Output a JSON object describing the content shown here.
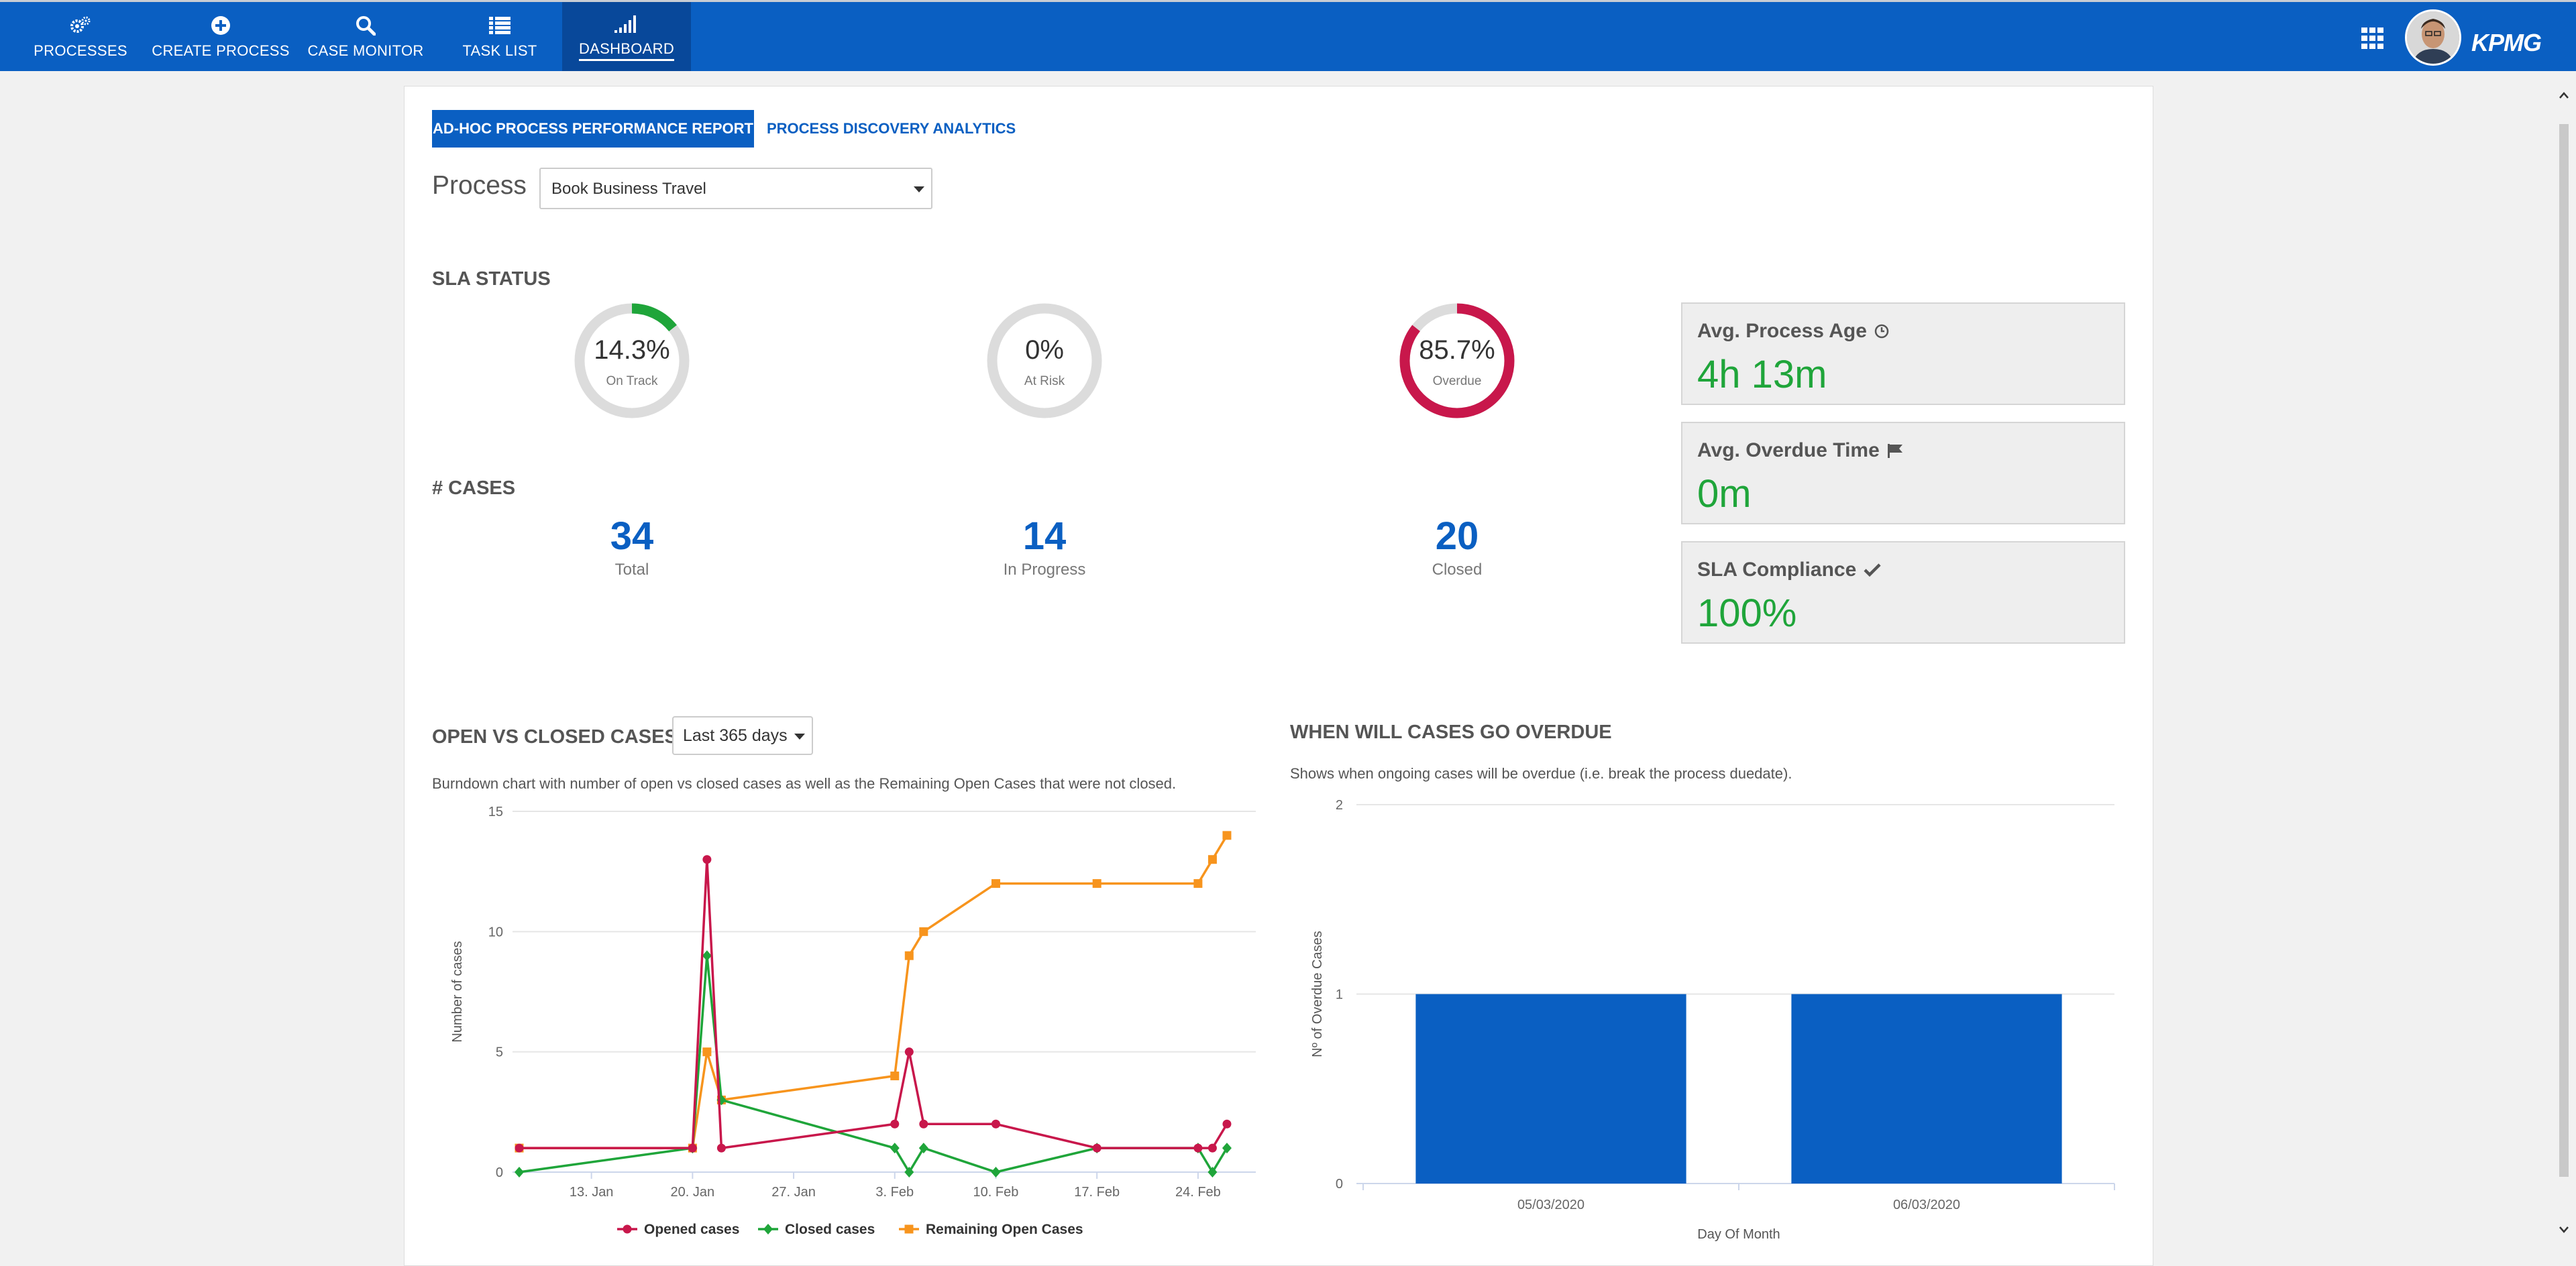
{
  "nav": {
    "items": [
      {
        "label": "PROCESSES",
        "icon": "gears-icon"
      },
      {
        "label": "CREATE PROCESS",
        "icon": "plus-circle-icon"
      },
      {
        "label": "CASE MONITOR",
        "icon": "search-icon"
      },
      {
        "label": "TASK LIST",
        "icon": "list-icon"
      },
      {
        "label": "DASHBOARD",
        "icon": "signal-bars-icon"
      }
    ],
    "active": "DASHBOARD",
    "logo": "KPMG"
  },
  "tabs": {
    "report": "AD-HOC PROCESS PERFORMANCE REPORT",
    "discovery": "PROCESS DISCOVERY ANALYTICS"
  },
  "process": {
    "label": "Process",
    "selected": "Book Business Travel"
  },
  "sla": {
    "title": "SLA STATUS",
    "gauges": [
      {
        "value": "14.3%",
        "label": "On Track",
        "fraction": 0.143,
        "color": "#1fa53a"
      },
      {
        "value": "0%",
        "label": "At Risk",
        "fraction": 0,
        "color": "#f0a31c"
      },
      {
        "value": "85.7%",
        "label": "Overdue",
        "fraction": 0.857,
        "color": "#c8174b"
      }
    ]
  },
  "cases": {
    "title": "# CASES",
    "total": {
      "value": "34",
      "label": "Total"
    },
    "in_progress": {
      "value": "14",
      "label": "In Progress"
    },
    "closed": {
      "value": "20",
      "label": "Closed"
    }
  },
  "kpis": {
    "process_age": {
      "title": "Avg. Process Age",
      "value": "4h 13m"
    },
    "overdue_time": {
      "title": "Avg. Overdue Time",
      "value": "0m"
    },
    "sla_compliance": {
      "title": "SLA Compliance",
      "value": "100%"
    }
  },
  "open_closed": {
    "title": "OPEN VS CLOSED CASES",
    "range": "Last 365 days",
    "description": "Burndown chart with number of open vs closed cases as well as the Remaining Open Cases that were not closed."
  },
  "overdue": {
    "title": "WHEN WILL CASES GO OVERDUE",
    "description": "Shows when ongoing cases will be overdue (i.e. break the process duedate)."
  },
  "chart_data": [
    {
      "type": "line",
      "ylabel": "Number of cases",
      "ylim": [
        0,
        15
      ],
      "yticks": [
        0,
        5,
        10,
        15
      ],
      "xticks": [
        {
          "label": "13. Jan",
          "day": 13
        },
        {
          "label": "20. Jan",
          "day": 20
        },
        {
          "label": "27. Jan",
          "day": 27
        },
        {
          "label": "3. Feb",
          "day": 34
        },
        {
          "label": "10. Feb",
          "day": 41
        },
        {
          "label": "17. Feb",
          "day": 48
        },
        {
          "label": "24. Feb",
          "day": 55
        }
      ],
      "xlim": [
        8,
        59
      ],
      "grid": true,
      "legend": "bottom",
      "series": [
        {
          "name": "Opened cases",
          "color": "#c8174b",
          "marker": "circle",
          "x": [
            8,
            20,
            21,
            22,
            34,
            35,
            36,
            41,
            48,
            55,
            56,
            57
          ],
          "y": [
            1,
            1,
            13,
            1,
            2,
            5,
            2,
            2,
            1,
            1,
            1,
            2
          ]
        },
        {
          "name": "Closed cases",
          "color": "#1fa53a",
          "marker": "diamond",
          "x": [
            8,
            20,
            21,
            22,
            34,
            35,
            36,
            41,
            48,
            55,
            56,
            57
          ],
          "y": [
            0,
            1,
            9,
            3,
            1,
            0,
            1,
            0,
            1,
            1,
            0,
            1
          ]
        },
        {
          "name": "Remaining Open Cases",
          "color": "#f7941d",
          "marker": "square",
          "x": [
            8,
            20,
            21,
            22,
            34,
            35,
            36,
            41,
            48,
            55,
            56,
            57
          ],
          "y": [
            1,
            1,
            5,
            3,
            4,
            9,
            10,
            12,
            12,
            12,
            13,
            14
          ]
        }
      ]
    },
    {
      "type": "bar",
      "xlabel": "Day Of Month",
      "ylabel": "Nº of Overdue Cases",
      "ylim": [
        0,
        2
      ],
      "yticks": [
        0,
        1,
        2
      ],
      "categories": [
        "05/03/2020",
        "06/03/2020"
      ],
      "values": [
        1,
        1
      ],
      "color": "#0a5fc2",
      "grid": true
    }
  ]
}
